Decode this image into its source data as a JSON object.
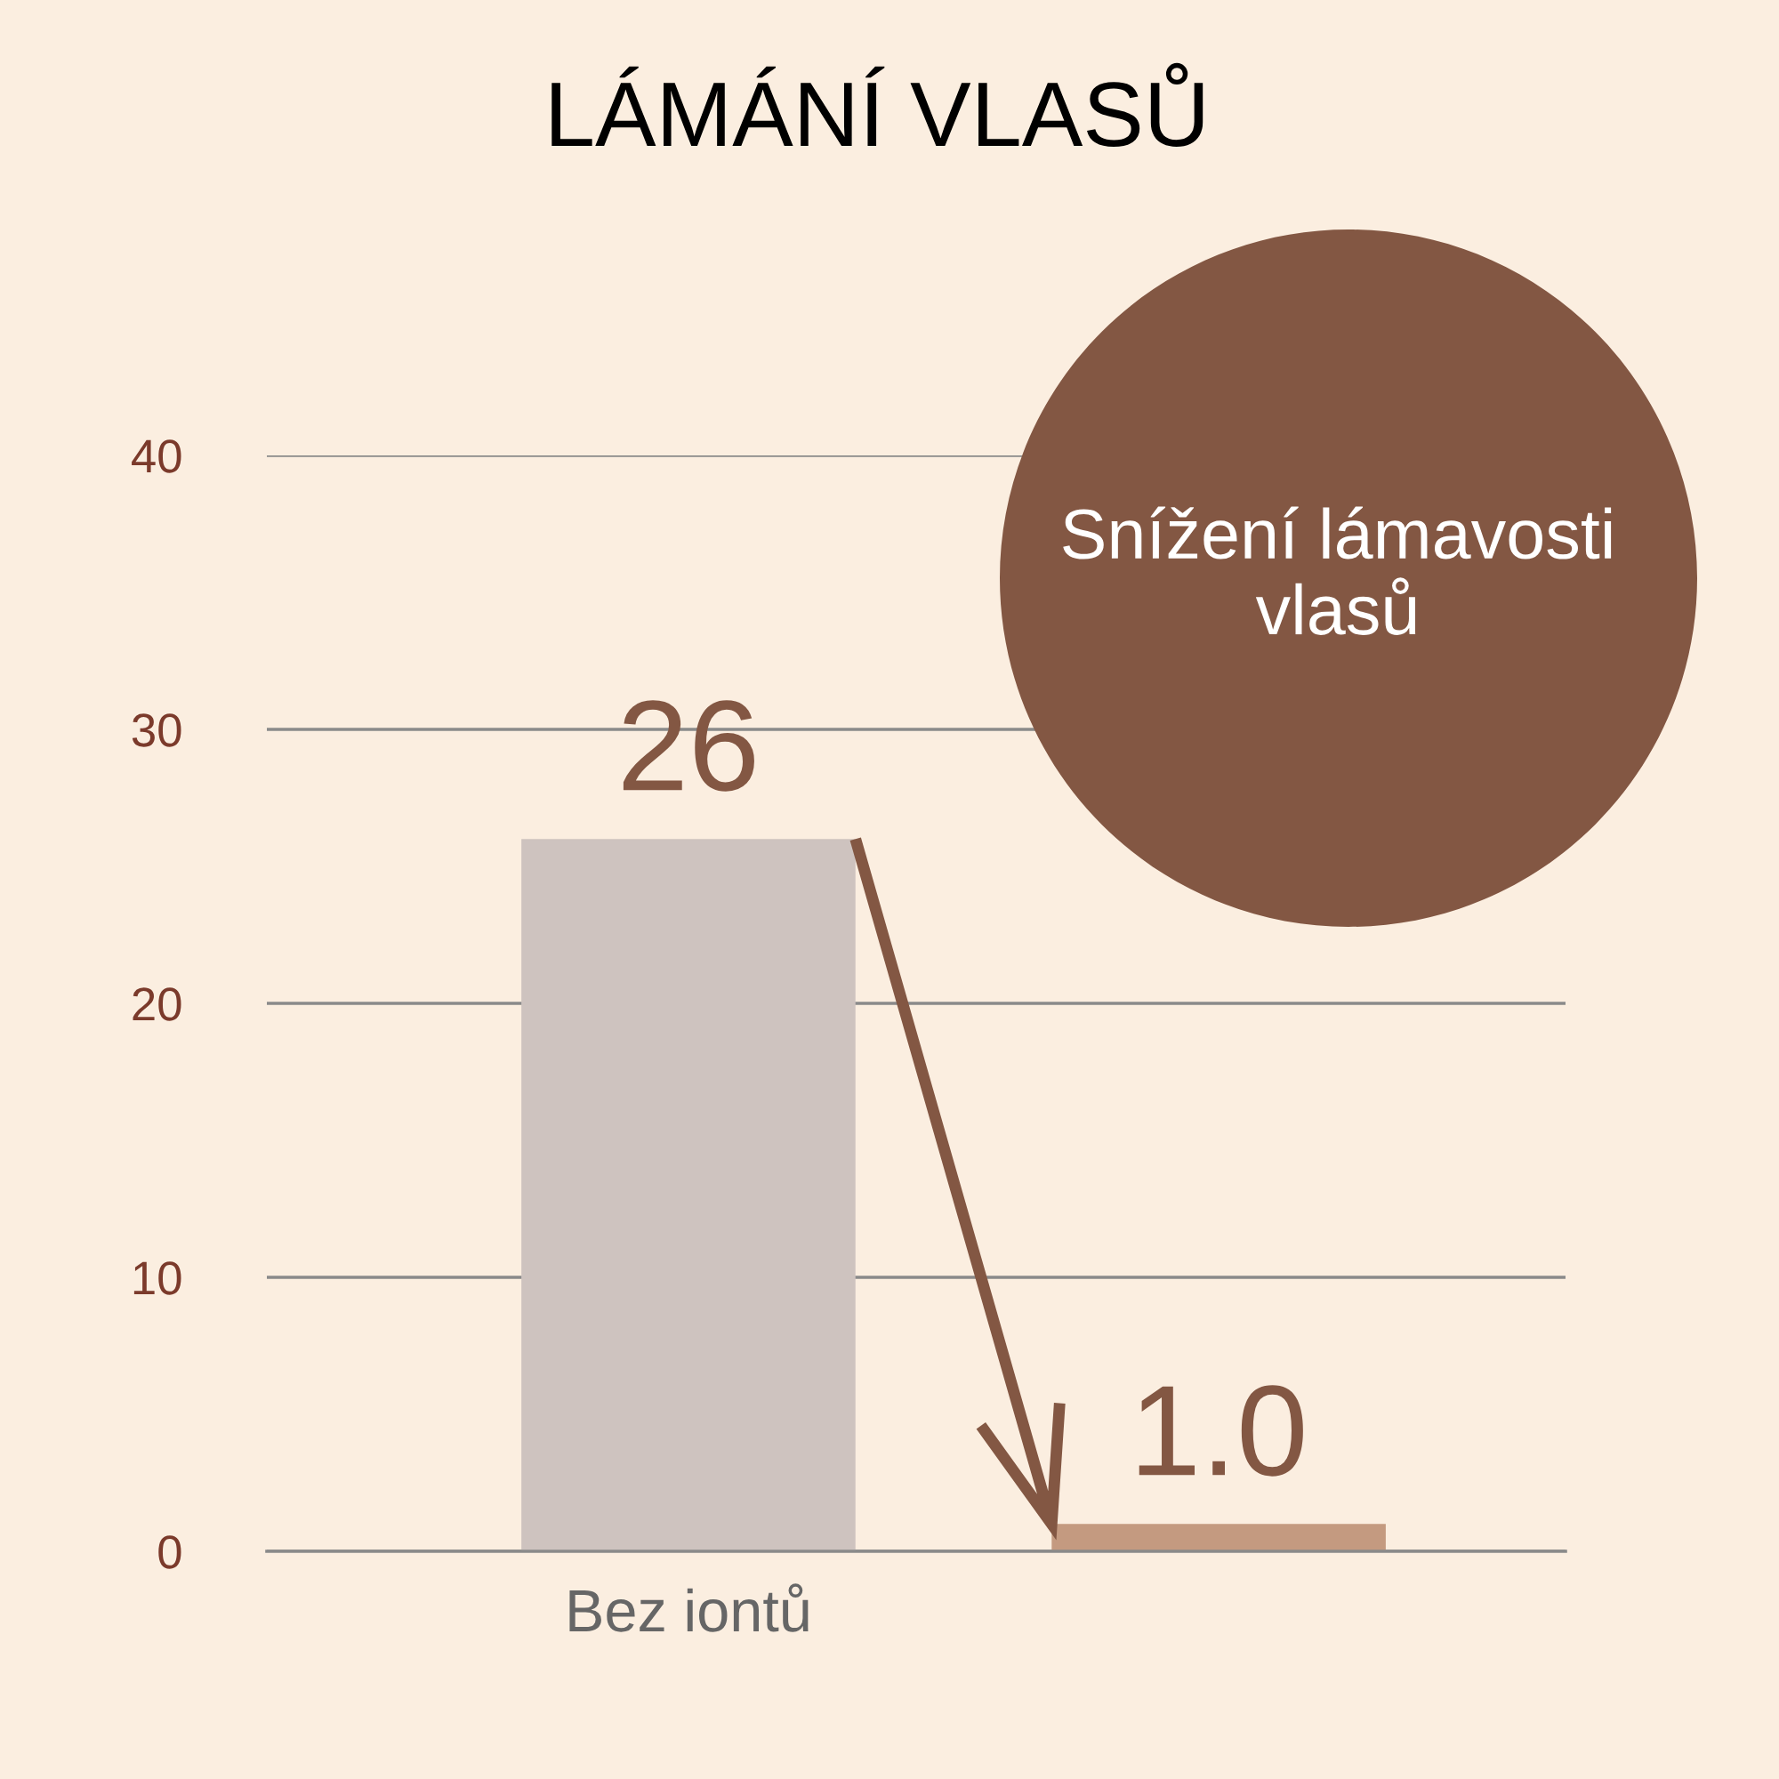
{
  "chart_data": {
    "type": "bar",
    "title": "LÁMÁNÍ VLASŮ",
    "categories": [
      "Bez iontů",
      null
    ],
    "values": [
      26,
      1.0
    ],
    "colors": [
      "#cec3bf",
      "#c49a80"
    ],
    "value_labels": [
      "26",
      "1.0"
    ],
    "ylim": [
      0,
      40
    ],
    "yticks": [
      0,
      10,
      20,
      30,
      40
    ],
    "grid": "y",
    "annotations": [
      "Snížení lámavosti vlasů"
    ]
  }
}
